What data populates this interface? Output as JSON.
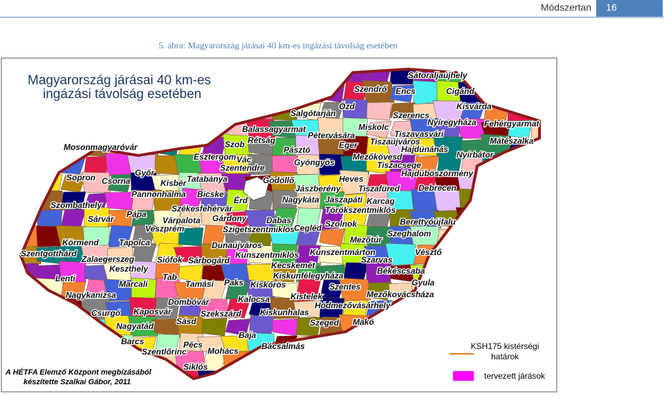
{
  "header": {
    "section": "Módszertan",
    "page": "16"
  },
  "caption": "5. ábra: Magyarország járásai 40 km-es ingázási távolság esetében",
  "map": {
    "title": [
      "Magyarország járásai 40 km-es",
      "ingázási távolság esetében"
    ],
    "places": [
      "Sátoraljaújhely",
      "Szendrő",
      "Encs",
      "Cigánd",
      "Ózd",
      "Kisvárda",
      "Salgótarján",
      "Szerencs",
      "Nyíregyháza",
      "Fehérgyarmat",
      "Balassagyarmat",
      "Miskolc",
      "Pétervására",
      "Tiszavasvári",
      "Mosonmagyaróvár",
      "Szob",
      "Rétság",
      "Pásztó",
      "Eger",
      "Tiszaújváros",
      "Mátészalka",
      "Hajdúnánás",
      "Esztergom",
      "Vác",
      "Gyöngyös",
      "Mezőkövesd",
      "Nyírbátor",
      "Szentendre",
      "Tiszacsege",
      "Győr",
      "Sopron",
      "Hajdúböszörmény",
      "Csorna",
      "Kisbér",
      "Tatabánya",
      "Gödöllő",
      "Heves",
      "Jászberény",
      "Tiszafüred",
      "Debrecen",
      "Pannonhalma",
      "Bicske",
      "Érd",
      "Nagykáta",
      "Jászapáti",
      "Karcag",
      "Szombathely",
      "Székesfehérvár",
      "Törökszentmiklós",
      "Pápa",
      "Sárvár",
      "Várpalota",
      "Gárdony",
      "Dabas",
      "Szolnok",
      "Berettyóújfalu",
      "Veszprém",
      "Szigetszentmiklós",
      "Cegléd",
      "Szeghalom",
      "Körmend",
      "Tapolca",
      "Dunaújváros",
      "Mezőtúr",
      "Szentgotthárd",
      "Zalaegerszeg",
      "Siófok",
      "Sárbogárd",
      "Kunszentmiklós",
      "Kunszentmárton",
      "Vésztő",
      "Szarvas",
      "Keszthely",
      "Kecskemét",
      "Békéscsaba",
      "Lenti",
      "Tab",
      "Kiskunfélegyháza",
      "Gyula",
      "Marcali",
      "Tamási",
      "Paks",
      "Kiskőrös",
      "Szentes",
      "Nagykanizsa",
      "Kistelek",
      "Mezőkovácsháza",
      "Dombóvár",
      "Kalocsa",
      "Hódmezővásárhely",
      "Csurgó",
      "Kaposvár",
      "Szekszárd",
      "Kiskunhalas",
      "Sásd",
      "Szeged",
      "Makó",
      "Nagyatád",
      "Baja",
      "Barcs",
      "Pécs",
      "Bácsalmás",
      "Szentlőrinc",
      "Mohács",
      "Siklós"
    ]
  },
  "legend": {
    "boundary": [
      "KSH175 kistérségi",
      "határok"
    ],
    "planned": "tervezett járások"
  },
  "credit": [
    "A HÉTFA Elemző Központ megbízásából",
    "készítette Szalkai Gábor, 2011"
  ]
}
